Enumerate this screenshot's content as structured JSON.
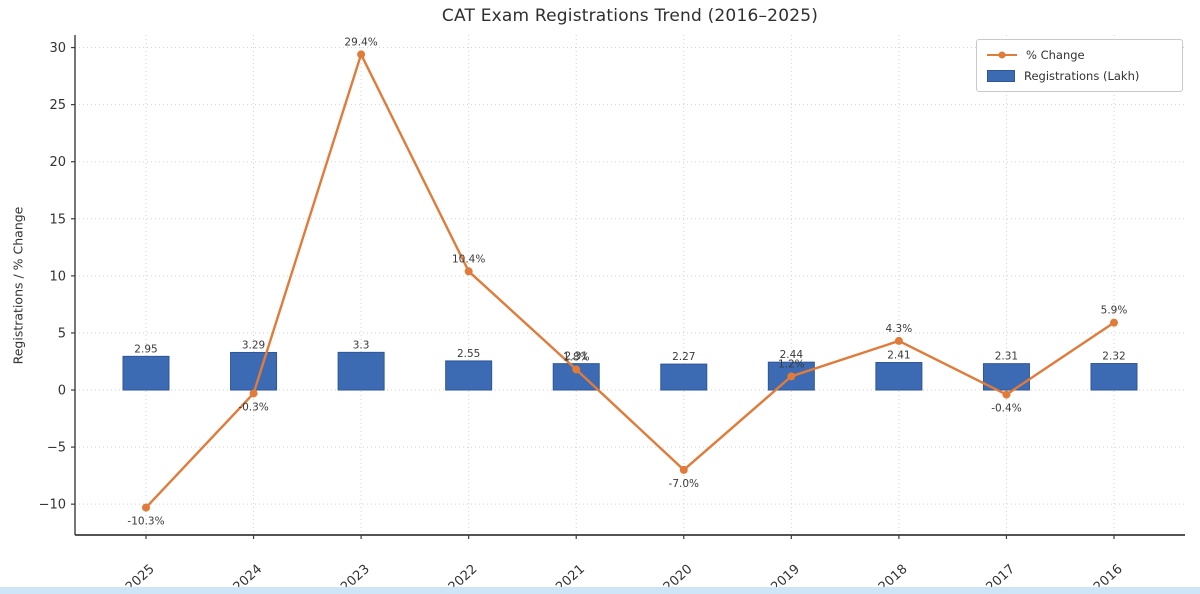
{
  "page": {
    "background": "#ffffff",
    "bottom_strip_color": "#cde5f7"
  },
  "chart_data": {
    "type": "bar+line",
    "title": "CAT Exam Registrations Trend (2016–2025)",
    "ylabel": "Registrations / % Change",
    "xlabel": "",
    "categories": [
      "2025",
      "2024",
      "2023",
      "2022",
      "2021",
      "2020",
      "2019",
      "2018",
      "2017",
      "2016"
    ],
    "series": [
      {
        "name": "Registrations (Lakh)",
        "type": "bar",
        "color": "#3d6bb3",
        "edge_color": "#2f5699",
        "values": [
          2.95,
          3.29,
          3.3,
          2.55,
          2.31,
          2.27,
          2.44,
          2.41,
          2.31,
          2.32
        ],
        "labels": [
          "2.95",
          "3.29",
          "3.3",
          "2.55",
          "2.31",
          "2.27",
          "2.44",
          "2.41",
          "2.31",
          "2.32"
        ]
      },
      {
        "name": "% Change",
        "type": "line",
        "color": "#e07b3a",
        "values": [
          -10.3,
          -0.3,
          29.4,
          10.4,
          1.8,
          -7.0,
          1.2,
          4.3,
          -0.4,
          5.9
        ],
        "labels": [
          "-10.3%",
          "-0.3%",
          "29.4%",
          "10.4%",
          "1.8%",
          "-7.0%",
          "1.2%",
          "4.3%",
          "-0.4%",
          "5.9%"
        ]
      }
    ],
    "y_ticks": [
      -10,
      -5,
      0,
      5,
      10,
      15,
      20,
      25,
      30
    ],
    "y_tick_labels": [
      "−10",
      "−5",
      "0",
      "5",
      "10",
      "15",
      "20",
      "25",
      "30"
    ],
    "ylim": [
      -12.7,
      31.1
    ],
    "grid": true,
    "grid_style": "dotted",
    "grid_color": "#d2d2d2",
    "spine_color": "#3c3c3c",
    "label_color": "#3a3a3a",
    "tick_label_color": "#333333",
    "legend_position": "top-right",
    "legend": [
      "% Change",
      "Registrations (Lakh)"
    ]
  }
}
